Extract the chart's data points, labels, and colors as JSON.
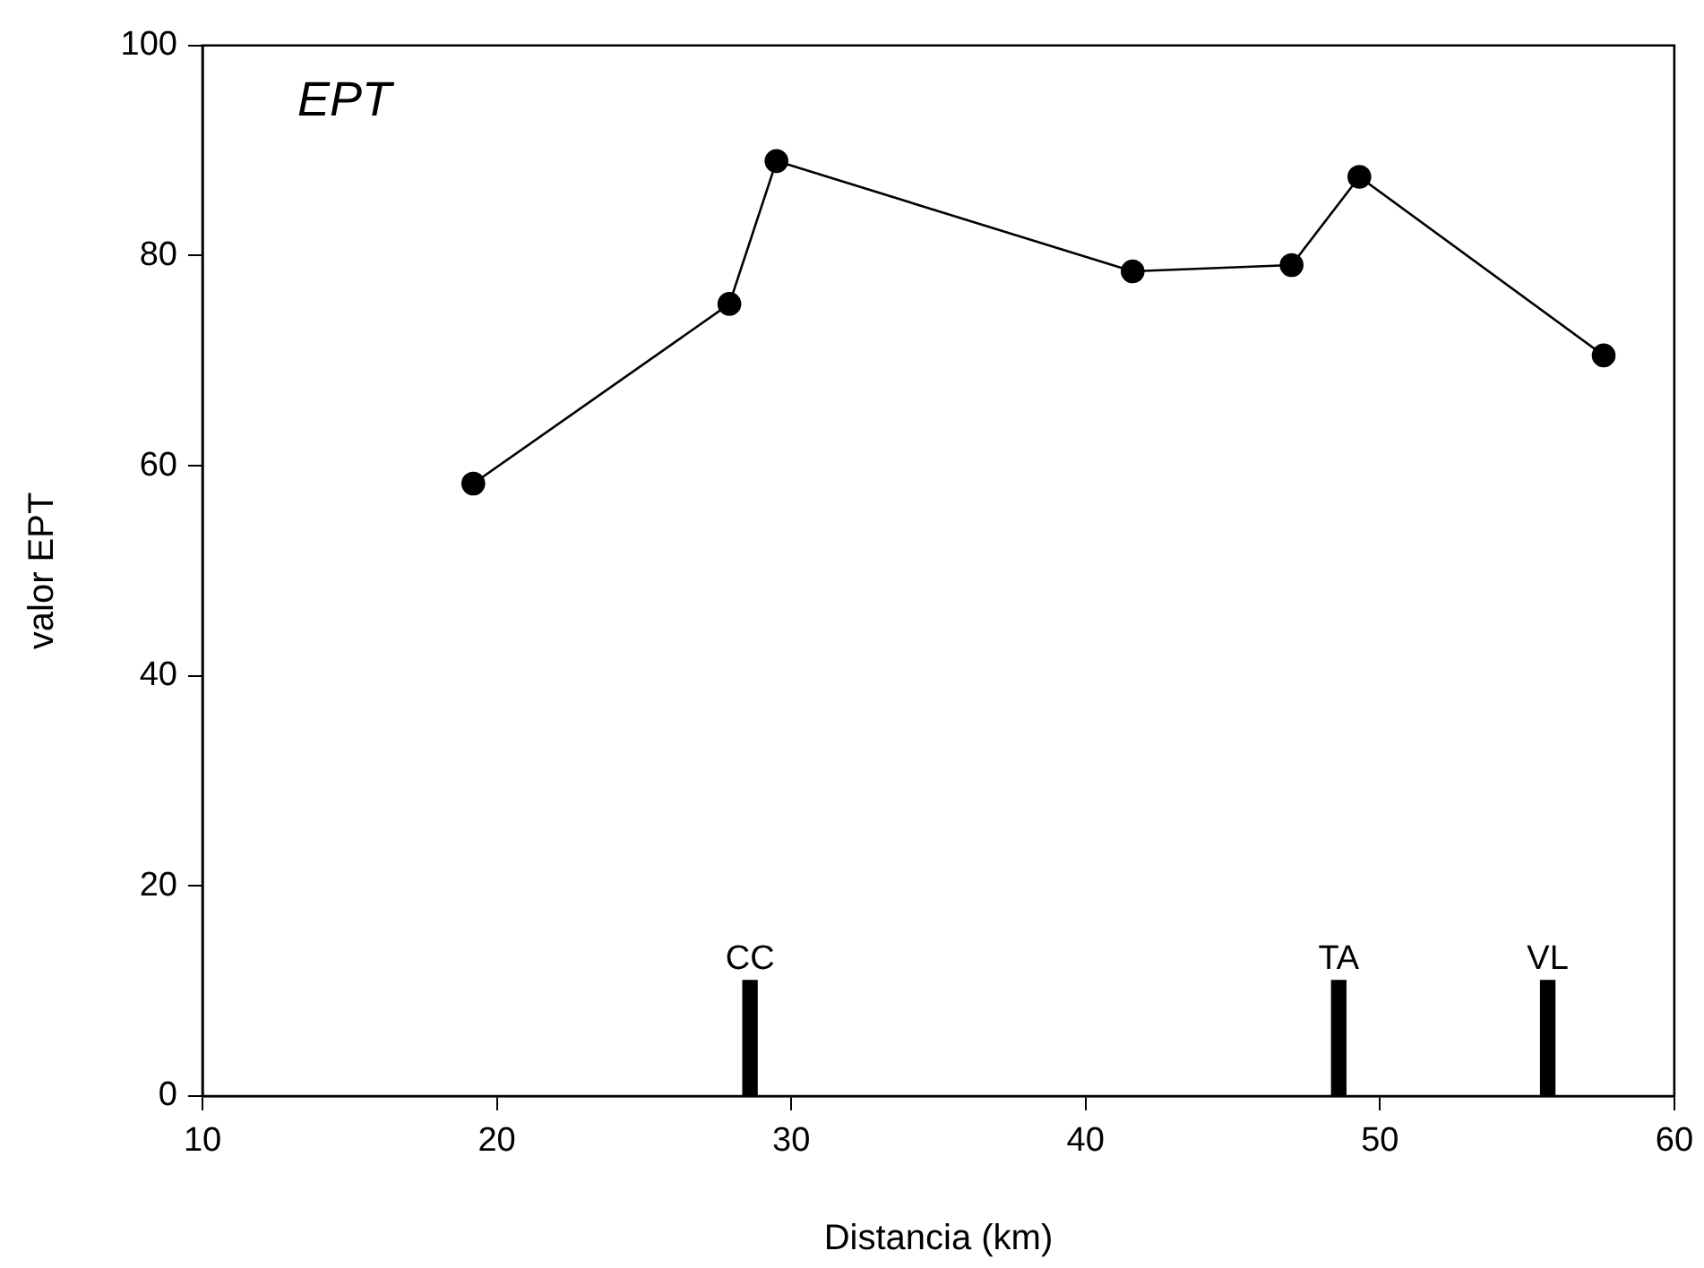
{
  "chart_data": {
    "type": "line",
    "title": "EPT",
    "xlabel": "Distancia (km)",
    "ylabel": "valor EPT",
    "x": [
      19.2,
      27.9,
      29.5,
      41.6,
      47.0,
      49.3,
      57.6
    ],
    "series": [
      {
        "color": "#000000",
        "values": [
          58.3,
          75.4,
          89.0,
          78.5,
          79.1,
          87.5,
          70.5
        ]
      },
      {
        "type": "bar",
        "color": "#000000",
        "x": [
          28.6,
          48.6,
          55.7
        ],
        "values": [
          11,
          11,
          11
        ]
      }
    ],
    "annotations": [
      {
        "text": "CC",
        "x": 28.6,
        "y": 11
      },
      {
        "text": "TA",
        "x": 48.6,
        "y": 11
      },
      {
        "text": "VL",
        "x": 55.7,
        "y": 11
      }
    ],
    "xlim": [
      10,
      60
    ],
    "xticks": [
      10,
      20,
      30,
      40,
      50,
      60
    ],
    "ylim": [
      0,
      100
    ],
    "yticks": [
      0,
      20,
      40,
      60,
      80,
      100
    ],
    "grid": false,
    "legend": false,
    "marker": "circle",
    "line_style": "solid"
  }
}
